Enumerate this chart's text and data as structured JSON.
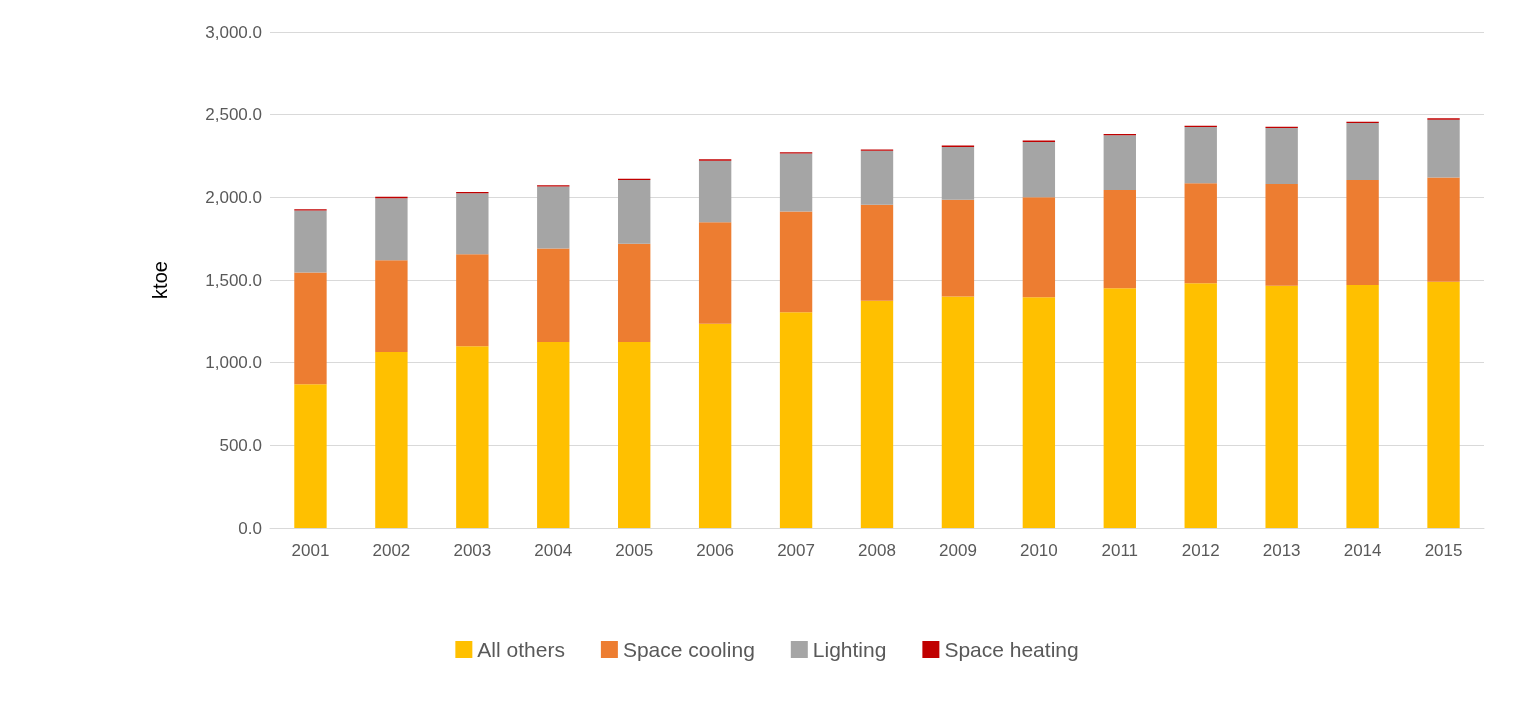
{
  "chart_data": {
    "type": "bar",
    "stacked": true,
    "ylabel": "ktoe",
    "categories": [
      "2001",
      "2002",
      "2003",
      "2004",
      "2005",
      "2006",
      "2007",
      "2008",
      "2009",
      "2010",
      "2011",
      "2012",
      "2013",
      "2014",
      "2015"
    ],
    "series": [
      {
        "name": "All others",
        "color": "#ffc000",
        "values": [
          870,
          1065,
          1100,
          1125,
          1125,
          1235,
          1305,
          1375,
          1400,
          1395,
          1450,
          1480,
          1465,
          1470,
          1490
        ]
      },
      {
        "name": "Space cooling",
        "color": "#ed7d31",
        "values": [
          675,
          555,
          555,
          565,
          595,
          615,
          610,
          580,
          585,
          605,
          595,
          605,
          615,
          635,
          630
        ]
      },
      {
        "name": "Lighting",
        "color": "#a5a5a5",
        "values": [
          375,
          375,
          370,
          375,
          385,
          372,
          350,
          327,
          320,
          335,
          330,
          340,
          340,
          345,
          350
        ]
      },
      {
        "name": "Space heating",
        "color": "#c00000",
        "values": [
          8,
          8,
          8,
          8,
          8,
          8,
          8,
          8,
          8,
          8,
          8,
          8,
          7,
          7,
          8
        ]
      }
    ],
    "ylim": [
      0,
      3000
    ],
    "yticks": [
      {
        "value": 0,
        "label": "0.0"
      },
      {
        "value": 500,
        "label": "500.0"
      },
      {
        "value": 1000,
        "label": "1,000.0"
      },
      {
        "value": 1500,
        "label": "1,500.0"
      },
      {
        "value": 2000,
        "label": "2,000.0"
      },
      {
        "value": 2500,
        "label": "2,500.0"
      },
      {
        "value": 3000,
        "label": "3,000.0"
      }
    ],
    "grid": "y",
    "legend": "bottom"
  }
}
